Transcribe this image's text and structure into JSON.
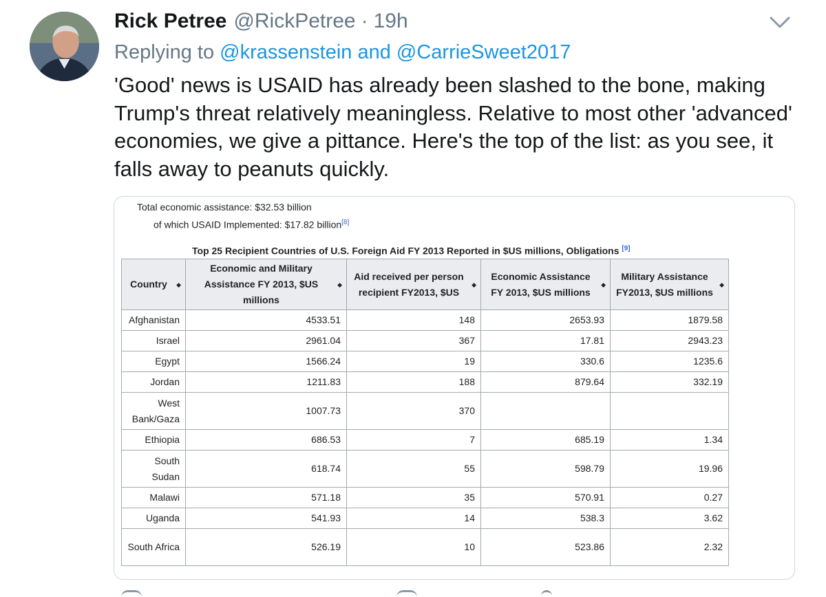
{
  "tweet": {
    "author_name": "Rick Petree",
    "handle": "@RickPetree",
    "separator": "·",
    "time": "19h",
    "reply_prefix": "Replying to ",
    "reply_user1": "@krassenstein",
    "reply_and": " and ",
    "reply_user2": "@CarrieSweet2017",
    "text": "'Good' news is USAID has already been slashed to the bone, making Trump's threat relatively meaningless. Relative to most other 'advanced' economies, we give a pittance. Here's the top of the list: as you see, it falls away to peanuts quickly.",
    "icons": {
      "avatar": "profile-photo",
      "menu": "chevron-down-icon"
    }
  },
  "media": {
    "total_line": "Total economic assistance: $32.53 billion",
    "usaid_line": "of which USAID Implemented: $17.82 billion",
    "usaid_ref": "[8]",
    "caption": "Top 25 Recipient Countries of U.S. Foreign Aid FY 2013 Reported in $US millions, Obligations",
    "caption_ref": "[9]",
    "sort_glyph": "◆",
    "headers": [
      "Country",
      "Economic and Military Assistance FY 2013, $US millions",
      "Aid received per person recipient FY2013, $US",
      "Economic Assistance FY 2013, $US millions",
      "Military Assistance FY2013, $US millions"
    ],
    "rows": [
      [
        "Afghanistan",
        "4533.51",
        "148",
        "2653.93",
        "1879.58"
      ],
      [
        "Israel",
        "2961.04",
        "367",
        "17.81",
        "2943.23"
      ],
      [
        "Egypt",
        "1566.24",
        "19",
        "330.6",
        "1235.6"
      ],
      [
        "Jordan",
        "1211.83",
        "188",
        "879.64",
        "332.19"
      ],
      [
        "West Bank/Gaza",
        "1007.73",
        "370",
        "",
        ""
      ],
      [
        "Ethiopia",
        "686.53",
        "7",
        "685.19",
        "1.34"
      ],
      [
        "South Sudan",
        "618.74",
        "55",
        "598.79",
        "19.96"
      ],
      [
        "Malawi",
        "571.18",
        "35",
        "570.91",
        "0.27"
      ],
      [
        "Uganda",
        "541.93",
        "14",
        "538.3",
        "3.62"
      ],
      [
        "South Africa",
        "526.19",
        "10",
        "523.86",
        "2.32"
      ]
    ]
  }
}
